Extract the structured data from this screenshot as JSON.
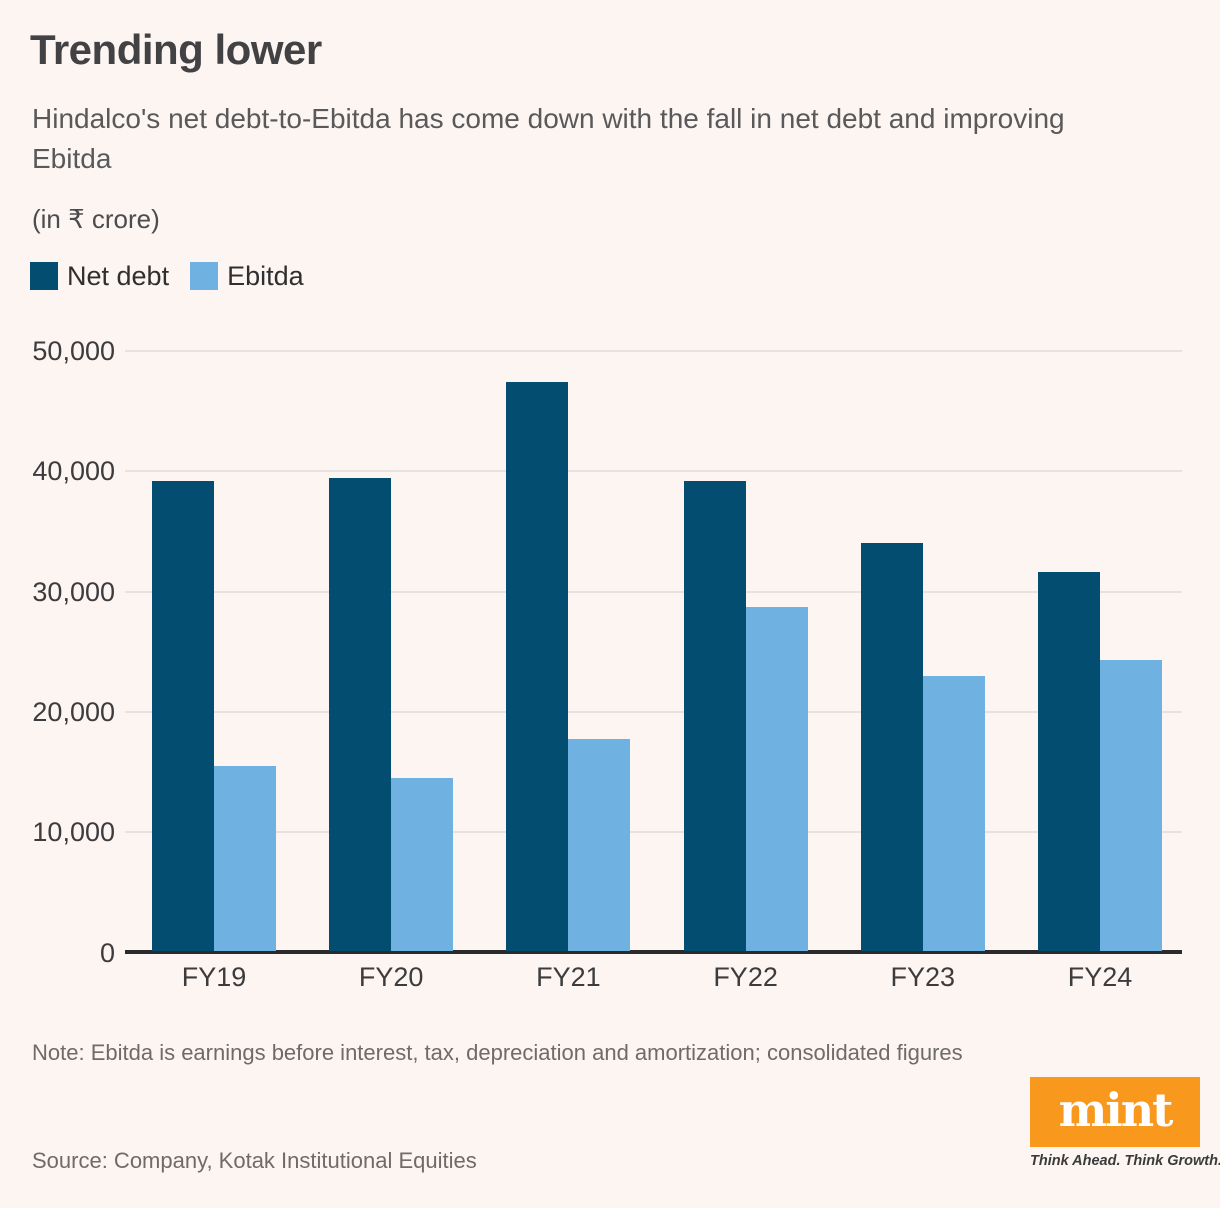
{
  "header": {
    "title": "Trending lower",
    "subtitle_line1": "Hindalco's net debt-to-Ebitda has come down with the fall in net debt and improving",
    "subtitle_line2": "Ebitda",
    "unit_label": "(in ₹ crore)"
  },
  "chart_data": {
    "type": "bar",
    "title": "Trending lower",
    "xlabel": "",
    "ylabel": "(in ₹ crore)",
    "categories": [
      "FY19",
      "FY20",
      "FY21",
      "FY22",
      "FY23",
      "FY24"
    ],
    "series": [
      {
        "name": "Net debt",
        "color": "#034d71",
        "values": [
          39100,
          39300,
          47300,
          39100,
          33900,
          31500
        ]
      },
      {
        "name": "Ebitda",
        "color": "#6fb2e2",
        "values": [
          15400,
          14400,
          17600,
          28600,
          22900,
          24200
        ]
      }
    ],
    "ylim": [
      0,
      50000
    ],
    "yticks": [
      0,
      10000,
      20000,
      30000,
      40000,
      50000
    ],
    "ytick_labels": [
      "0",
      "10,000",
      "20,000",
      "30,000",
      "40,000",
      "50,000"
    ],
    "grid": true,
    "legend_position": "top-left"
  },
  "footer": {
    "note": "Note: Ebitda is earnings before interest, tax, depreciation and amortization; consolidated figures",
    "source": "Source: Company, Kotak Institutional Equities",
    "logo_text": "mint",
    "logo_color": "#f8981d",
    "tagline": "Think Ahead. Think Growth."
  }
}
